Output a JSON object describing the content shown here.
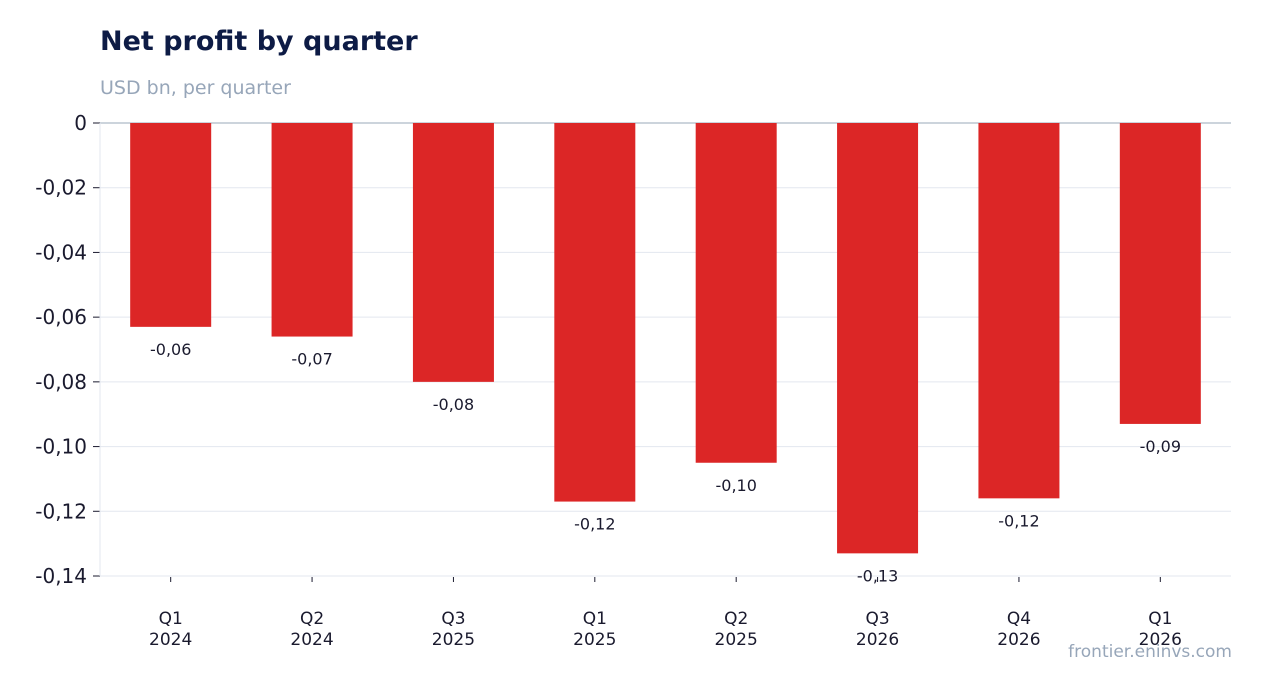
{
  "chart_data": {
    "type": "bar",
    "title": "Net profit by quarter",
    "subtitle": "USD bn, per quarter",
    "source": "frontier.eninvs.com",
    "categories": [
      [
        "Q1",
        "2024"
      ],
      [
        "Q2",
        "2024"
      ],
      [
        "Q3",
        "2025"
      ],
      [
        "Q1",
        "2025"
      ],
      [
        "Q2",
        "2025"
      ],
      [
        "Q3",
        "2026"
      ],
      [
        "Q4",
        "2026"
      ],
      [
        "Q1",
        "2026"
      ]
    ],
    "values": [
      -0.063,
      -0.066,
      -0.08,
      -0.117,
      -0.105,
      -0.133,
      -0.116,
      -0.093
    ],
    "data_labels": [
      "-0,06",
      "-0,07",
      "-0,08",
      "-0,12",
      "-0,10",
      "-0,13",
      "-0,12",
      "-0,09"
    ],
    "ylim": [
      -0.14,
      0
    ],
    "yticks": [
      0,
      -0.02,
      -0.04,
      -0.06,
      -0.08,
      -0.1,
      -0.12,
      -0.14
    ],
    "ytick_labels": [
      "0",
      "-0,02",
      "-0,04",
      "-0,06",
      "-0,08",
      "-0,10",
      "-0,12",
      "-0,14"
    ],
    "grid": true,
    "bar_color": "#dc2626",
    "grid_color": "#e3e7ef",
    "title_color": "#0d1b45",
    "muted_color": "#97a6b9"
  }
}
